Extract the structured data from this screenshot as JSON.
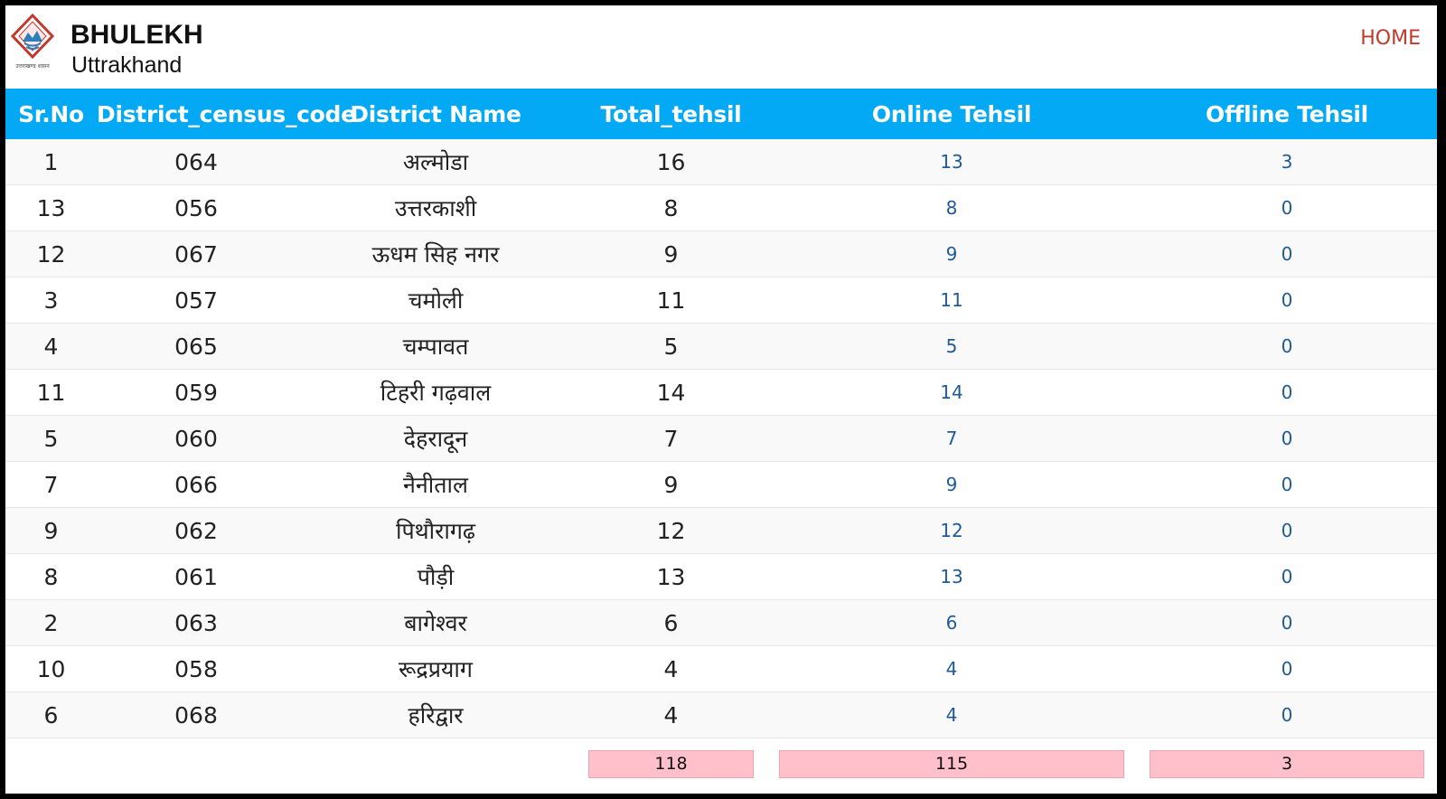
{
  "app": {
    "title": "BHULEKH",
    "subtitle": "Uttrakhand",
    "home_label": "HOME",
    "logo_caption": "उत्तराखण्ड शासन"
  },
  "table": {
    "headers": [
      "Sr.No",
      "District_census_code",
      "District Name",
      "Total_tehsil",
      "Online Tehsil",
      "Offline Tehsil"
    ],
    "rows": [
      {
        "sr": "1",
        "code": "064",
        "name": "अल्मोडा",
        "total": "16",
        "online": "13",
        "offline": "3"
      },
      {
        "sr": "13",
        "code": "056",
        "name": "उत्तरकाशी",
        "total": "8",
        "online": "8",
        "offline": "0"
      },
      {
        "sr": "12",
        "code": "067",
        "name": "ऊधम सिह नगर",
        "total": "9",
        "online": "9",
        "offline": "0"
      },
      {
        "sr": "3",
        "code": "057",
        "name": "चमोली",
        "total": "11",
        "online": "11",
        "offline": "0"
      },
      {
        "sr": "4",
        "code": "065",
        "name": "चम्पावत",
        "total": "5",
        "online": "5",
        "offline": "0"
      },
      {
        "sr": "11",
        "code": "059",
        "name": "टिहरी गढ़वाल",
        "total": "14",
        "online": "14",
        "offline": "0"
      },
      {
        "sr": "5",
        "code": "060",
        "name": "देहरादून",
        "total": "7",
        "online": "7",
        "offline": "0"
      },
      {
        "sr": "7",
        "code": "066",
        "name": "नैनीताल",
        "total": "9",
        "online": "9",
        "offline": "0"
      },
      {
        "sr": "9",
        "code": "062",
        "name": "पिथौरागढ़",
        "total": "12",
        "online": "12",
        "offline": "0"
      },
      {
        "sr": "8",
        "code": "061",
        "name": "पौड़ी",
        "total": "13",
        "online": "13",
        "offline": "0"
      },
      {
        "sr": "2",
        "code": "063",
        "name": "बागेश्वर",
        "total": "6",
        "online": "6",
        "offline": "0"
      },
      {
        "sr": "10",
        "code": "058",
        "name": "रूद्रप्रयाग",
        "total": "4",
        "online": "4",
        "offline": "0"
      },
      {
        "sr": "6",
        "code": "068",
        "name": "हरिद्वार",
        "total": "4",
        "online": "4",
        "offline": "0"
      }
    ],
    "totals": {
      "total": "118",
      "online": "115",
      "offline": "3"
    }
  },
  "colors": {
    "header_bg": "#03a9f4",
    "home_link": "#c0392b",
    "link": "#1f5a96",
    "total_box": "#ffc0cb"
  },
  "icons": {
    "logo": "uttarakhand-emblem-icon"
  }
}
